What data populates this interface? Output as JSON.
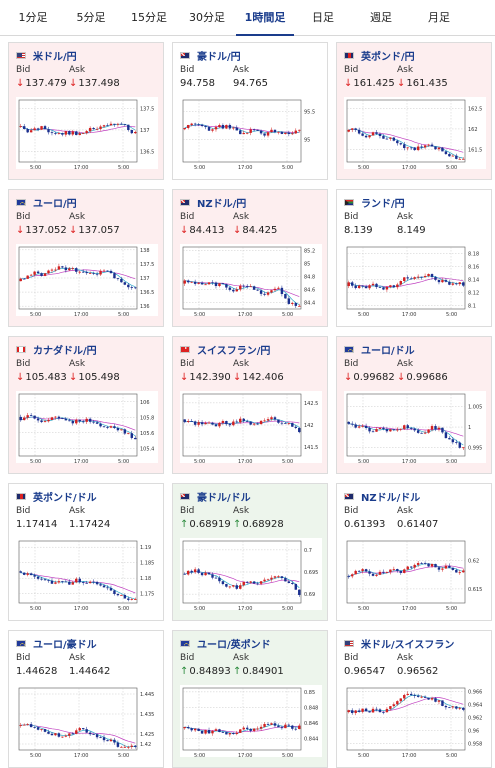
{
  "tabs": [
    {
      "label": "1分足",
      "active": false
    },
    {
      "label": "5分足",
      "active": false
    },
    {
      "label": "15分足",
      "active": false
    },
    {
      "label": "30分足",
      "active": false
    },
    {
      "label": "1時間足",
      "active": true
    },
    {
      "label": "日足",
      "active": false
    },
    {
      "label": "週足",
      "active": false
    },
    {
      "label": "月足",
      "active": false
    }
  ],
  "labels": {
    "bid": "Bid",
    "ask": "Ask"
  },
  "colors": {
    "down": "#d22222",
    "up": "#2a8a3c",
    "candle_up": "#d22222",
    "candle_down": "#1a2f8f",
    "ma_short": "#2aa8c8",
    "ma_long": "#c040c0",
    "pair_name": "#1a3c8c"
  },
  "cards": [
    {
      "id": "usd-jpy",
      "pair": "米ドル/円",
      "flag": "us",
      "trend": "down",
      "bid": "137.479",
      "ask": "137.498",
      "chart_data": {
        "type": "candlestick",
        "x_ticks": [
          "5:00",
          "17:00",
          "5:00"
        ],
        "y_ticks": [
          "137.5",
          "137",
          "136.5"
        ],
        "ylim": [
          136.25,
          137.7
        ]
      }
    },
    {
      "id": "aud-jpy",
      "pair": "豪ドル/円",
      "flag": "au",
      "trend": "none",
      "bid": "94.758",
      "ask": "94.765",
      "chart_data": {
        "type": "candlestick",
        "x_ticks": [
          "5:00",
          "17:00",
          "5:00"
        ],
        "y_ticks": [
          "95.5",
          "95"
        ],
        "ylim": [
          94.6,
          95.7
        ]
      }
    },
    {
      "id": "gbp-jpy",
      "pair": "英ポンド/円",
      "flag": "gb",
      "trend": "down",
      "bid": "161.425",
      "ask": "161.435",
      "chart_data": {
        "type": "candlestick",
        "x_ticks": [
          "5:00",
          "17:00",
          "5:00"
        ],
        "y_ticks": [
          "162.5",
          "162",
          "161.5"
        ],
        "ylim": [
          161.2,
          162.7
        ]
      }
    },
    {
      "id": "eur-jpy",
      "pair": "ユーロ/円",
      "flag": "eu",
      "trend": "down",
      "bid": "137.052",
      "ask": "137.057",
      "chart_data": {
        "type": "candlestick",
        "x_ticks": [
          "5:00",
          "17:00",
          "5:00"
        ],
        "y_ticks": [
          "138",
          "137.5",
          "137",
          "136.5",
          "136"
        ],
        "ylim": [
          135.9,
          138.1
        ]
      }
    },
    {
      "id": "nzd-jpy",
      "pair": "NZドル/円",
      "flag": "nz",
      "trend": "down",
      "bid": "84.413",
      "ask": "84.425",
      "chart_data": {
        "type": "candlestick",
        "x_ticks": [
          "5:00",
          "17:00",
          "5:00"
        ],
        "y_ticks": [
          "85.2",
          "85",
          "84.8",
          "84.6",
          "84.4"
        ],
        "ylim": [
          84.3,
          85.25
        ]
      }
    },
    {
      "id": "zar-jpy",
      "pair": "ランド/円",
      "flag": "za",
      "trend": "none",
      "bid": "8.139",
      "ask": "8.149",
      "chart_data": {
        "type": "candlestick",
        "x_ticks": [
          "5:00",
          "17:00",
          "5:00"
        ],
        "y_ticks": [
          "8.18",
          "8.16",
          "8.14",
          "8.12",
          "8.1"
        ],
        "ylim": [
          8.095,
          8.19
        ]
      }
    },
    {
      "id": "cad-jpy",
      "pair": "カナダドル/円",
      "flag": "ca",
      "trend": "down",
      "bid": "105.483",
      "ask": "105.498",
      "chart_data": {
        "type": "candlestick",
        "x_ticks": [
          "5:00",
          "17:00",
          "5:00"
        ],
        "y_ticks": [
          "106",
          "105.8",
          "105.6",
          "105.4"
        ],
        "ylim": [
          105.3,
          106.1
        ]
      }
    },
    {
      "id": "chf-jpy",
      "pair": "スイスフラン/円",
      "flag": "ch",
      "trend": "down",
      "bid": "142.390",
      "ask": "142.406",
      "chart_data": {
        "type": "candlestick",
        "x_ticks": [
          "5:00",
          "17:00",
          "5:00"
        ],
        "y_ticks": [
          "142.5",
          "142",
          "141.5"
        ],
        "ylim": [
          141.3,
          142.7
        ]
      }
    },
    {
      "id": "eur-usd",
      "pair": "ユーロ/ドル",
      "flag": "eu",
      "trend": "down",
      "bid": "0.99682",
      "ask": "0.99686",
      "chart_data": {
        "type": "candlestick",
        "x_ticks": [
          "5:00",
          "17:00",
          "5:00"
        ],
        "y_ticks": [
          "1.005",
          "1",
          "0.995"
        ],
        "ylim": [
          0.993,
          1.008
        ]
      }
    },
    {
      "id": "gbp-usd",
      "pair": "英ポンド/ドル",
      "flag": "gb",
      "trend": "none",
      "bid": "1.17414",
      "ask": "1.17424",
      "chart_data": {
        "type": "candlestick",
        "x_ticks": [
          "5:00",
          "17:00",
          "5:00"
        ],
        "y_ticks": [
          "1.19",
          "1.185",
          "1.18",
          "1.175"
        ],
        "ylim": [
          1.172,
          1.192
        ]
      }
    },
    {
      "id": "aud-usd",
      "pair": "豪ドル/ドル",
      "flag": "au",
      "trend": "up",
      "bid": "0.68919",
      "ask": "0.68928",
      "chart_data": {
        "type": "candlestick",
        "x_ticks": [
          "5:00",
          "17:00",
          "5:00"
        ],
        "y_ticks": [
          "0.7",
          "0.695",
          "0.69"
        ],
        "ylim": [
          0.688,
          0.702
        ]
      }
    },
    {
      "id": "nzd-usd",
      "pair": "NZドル/ドル",
      "flag": "nz",
      "trend": "none",
      "bid": "0.61393",
      "ask": "0.61407",
      "chart_data": {
        "type": "candlestick",
        "x_ticks": [
          "5:00",
          "17:00",
          "5:00"
        ],
        "y_ticks": [
          "0.62",
          "0.615"
        ],
        "ylim": [
          0.6125,
          0.6235
        ]
      }
    },
    {
      "id": "eur-aud",
      "pair": "ユーロ/豪ドル",
      "flag": "eu",
      "trend": "none",
      "bid": "1.44628",
      "ask": "1.44642",
      "chart_data": {
        "type": "candlestick",
        "x_ticks": [
          "5:00",
          "17:00",
          "5:00"
        ],
        "y_ticks": [
          "1.445",
          "1.435",
          "1.425",
          "1.42"
        ],
        "ylim": [
          1.417,
          1.448
        ]
      }
    },
    {
      "id": "eur-gbp",
      "pair": "ユーロ/英ポンド",
      "flag": "eu",
      "trend": "up",
      "bid": "0.84893",
      "ask": "0.84901",
      "chart_data": {
        "type": "candlestick",
        "x_ticks": [
          "5:00",
          "17:00",
          "5:00"
        ],
        "y_ticks": [
          "0.85",
          "0.848",
          "0.846",
          "0.844"
        ],
        "ylim": [
          0.8425,
          0.8505
        ]
      }
    },
    {
      "id": "usd-chf",
      "pair": "米ドル/スイスフラン",
      "flag": "us",
      "trend": "none",
      "bid": "0.96547",
      "ask": "0.96562",
      "chart_data": {
        "type": "candlestick",
        "x_ticks": [
          "5:00",
          "17:00",
          "5:00"
        ],
        "y_ticks": [
          "0.966",
          "0.964",
          "0.962",
          "0.96",
          "0.958"
        ],
        "ylim": [
          0.957,
          0.9665
        ]
      }
    }
  ]
}
